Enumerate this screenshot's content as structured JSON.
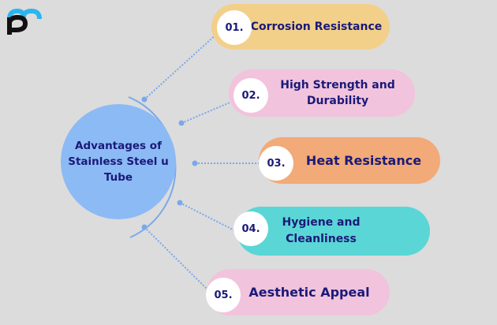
{
  "logo": {
    "name": "logo",
    "colors": [
      "#29b6f0",
      "#111111"
    ]
  },
  "center": {
    "title": "Advantages of Stainless Steel u Tube",
    "color": "#8cbaf5"
  },
  "items": [
    {
      "number": "01.",
      "label": "Corrosion Resistance",
      "color": "#f2d08a"
    },
    {
      "number": "02.",
      "label": "High Strength and Durability",
      "color": "#f2c3dc"
    },
    {
      "number": "03.",
      "label": "Heat Resistance",
      "color": "#f2aa78"
    },
    {
      "number": "04.",
      "label": "Hygiene and Cleanliness",
      "color": "#5ad6d6"
    },
    {
      "number": "05.",
      "label": "Aesthetic Appeal",
      "color": "#f2c3dc"
    }
  ],
  "text_color": "#1a1a78",
  "line_color": "#7aa8ea"
}
